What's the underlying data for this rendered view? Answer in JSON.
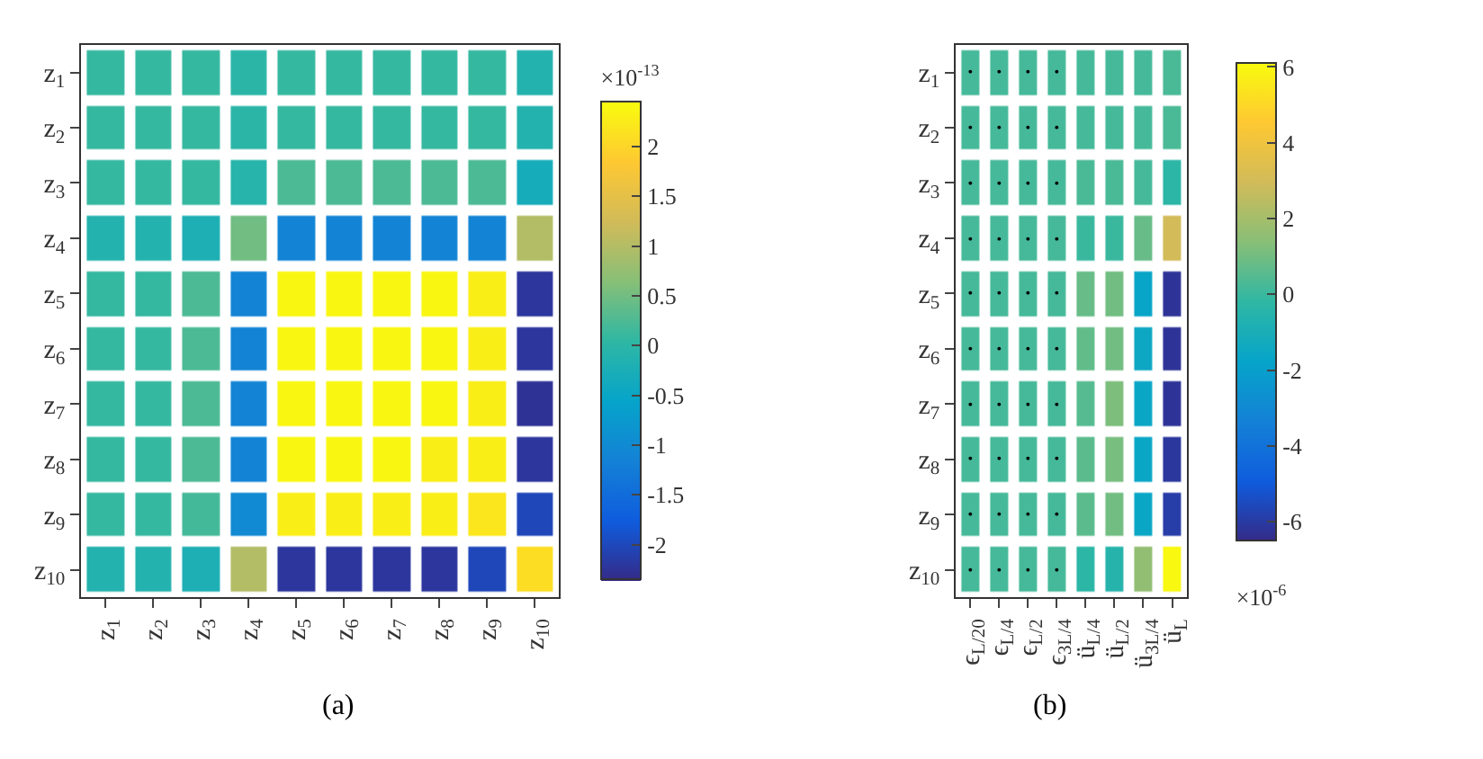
{
  "chart_data": [
    {
      "type": "heatmap",
      "categories": [
        "z$_{1}$",
        "z$_{2}$",
        "z$_{3}$",
        "z$_{4}$",
        "z$_{5}$",
        "z$_{6}$",
        "z$_{7}$",
        "z$_{8}$",
        "z$_{9}$",
        "z$_{10}$"
      ],
      "y_categories": [
        "z$_{1}$",
        "z$_{2}$",
        "z$_{3}$",
        "z$_{4}$",
        "z$_{5}$",
        "z$_{6}$",
        "z$_{7}$",
        "z$_{8}$",
        "z$_{9}$",
        "z$_{10}$"
      ],
      "cells": [
        [
          0.1,
          0.1,
          0.1,
          0,
          0.1,
          0.1,
          0.1,
          0.1,
          0.1,
          -0.1
        ],
        [
          0.1,
          0.1,
          0.1,
          0,
          0.1,
          0.1,
          0.1,
          0.1,
          0.1,
          -0.1
        ],
        [
          0.1,
          0.1,
          0.1,
          -0.05,
          0.25,
          0.25,
          0.25,
          0.25,
          0.25,
          -0.3
        ],
        [
          -0.1,
          -0.1,
          -0.2,
          0.5,
          -1.1,
          -1.1,
          -1.1,
          -1.1,
          -1.1,
          1.0
        ],
        [
          0.1,
          0.1,
          0.25,
          -1.1,
          2.4,
          2.4,
          2.4,
          2.4,
          2.3,
          -2.2
        ],
        [
          0.1,
          0.1,
          0.25,
          -1.1,
          2.4,
          2.4,
          2.4,
          2.4,
          2.3,
          -2.2
        ],
        [
          0.1,
          0.1,
          0.25,
          -1.1,
          2.4,
          2.4,
          2.4,
          2.4,
          2.3,
          -2.25
        ],
        [
          0.1,
          0.1,
          0.25,
          -1.1,
          2.4,
          2.4,
          2.4,
          2.3,
          2.3,
          -2.2
        ],
        [
          0.1,
          0.1,
          0.2,
          -1.0,
          2.3,
          2.3,
          2.3,
          2.3,
          2.2,
          -2.0
        ],
        [
          -0.1,
          -0.1,
          -0.2,
          1.0,
          -2.2,
          -2.2,
          -2.2,
          -2.2,
          -2.0,
          2.1
        ]
      ],
      "clim": [
        -2.35,
        2.45
      ],
      "cticks": [
        -2,
        -1.5,
        -1,
        -0.5,
        0,
        0.5,
        1,
        1.5,
        2
      ],
      "clabel": "×10$^{-13}$",
      "annotations": [
        "(a)"
      ]
    },
    {
      "type": "heatmap",
      "categories": [
        "ϵ$_{L/20}$",
        "ϵ$_{L/4}$",
        "ϵ$_{L/2}$",
        "ϵ$_{3L/4}$",
        "ü$_{L/4}$",
        "ü$_{L/2}$",
        "ü$_{3L/4}$",
        "ü$_{L}$"
      ],
      "y_categories": [
        "z$_{1}$",
        "z$_{2}$",
        "z$_{3}$",
        "z$_{4}$",
        "z$_{5}$",
        "z$_{6}$",
        "z$_{7}$",
        "z$_{8}$",
        "z$_{9}$",
        "z$_{10}$"
      ],
      "cells": [
        [
          0.2,
          0.2,
          0.2,
          0.2,
          0.2,
          0.2,
          0.2,
          0.3
        ],
        [
          0.2,
          0.2,
          0.2,
          0.2,
          0.2,
          0.2,
          0.2,
          0.3
        ],
        [
          0.2,
          0.2,
          0.2,
          0.2,
          0.3,
          0.3,
          0.2,
          -0.3
        ],
        [
          0.2,
          0.2,
          0.2,
          0.2,
          0,
          0,
          0.8,
          3.0
        ],
        [
          0.2,
          0.2,
          0.2,
          0.2,
          0.8,
          1.0,
          -1.7,
          -6.2
        ],
        [
          0.2,
          0.2,
          0.2,
          0.2,
          0.7,
          1.0,
          -1.5,
          -6.2
        ],
        [
          0.2,
          0.2,
          0.2,
          0.2,
          0.5,
          1.2,
          -1.6,
          -6.2
        ],
        [
          0.2,
          0.2,
          0.2,
          0.2,
          0.6,
          1.1,
          -1.6,
          -6.1
        ],
        [
          0.2,
          0.2,
          0.2,
          0.2,
          0.6,
          1.0,
          -1.6,
          -5.9
        ],
        [
          0.2,
          0.2,
          0.2,
          0.2,
          -0.3,
          -0.5,
          1.6,
          6.0
        ]
      ],
      "cell_labels": [
        [
          "•",
          "•",
          "•",
          "•",
          null,
          null,
          null,
          null
        ],
        [
          "•",
          "•",
          "•",
          "•",
          null,
          null,
          null,
          null
        ],
        [
          "•",
          "•",
          "•",
          "•",
          null,
          null,
          null,
          null
        ],
        [
          "•",
          "•",
          "•",
          "•",
          null,
          null,
          null,
          null
        ],
        [
          "•",
          "•",
          "•",
          "•",
          null,
          null,
          null,
          null
        ],
        [
          "•",
          "•",
          "•",
          "•",
          null,
          null,
          null,
          null
        ],
        [
          "•",
          "•",
          "•",
          "•",
          null,
          null,
          null,
          null
        ],
        [
          "•",
          "•",
          "•",
          "•",
          null,
          null,
          null,
          null
        ],
        [
          "•",
          "•",
          "•",
          "•",
          null,
          null,
          null,
          null
        ],
        [
          "•",
          "•",
          "•",
          "•",
          null,
          null,
          null,
          null
        ]
      ],
      "clim": [
        -6.5,
        6.1
      ],
      "cticks": [
        -6,
        -4,
        -2,
        0,
        2,
        4,
        6
      ],
      "clabel": "×10$^{-6}$",
      "annotations": [
        "(b)"
      ]
    }
  ]
}
